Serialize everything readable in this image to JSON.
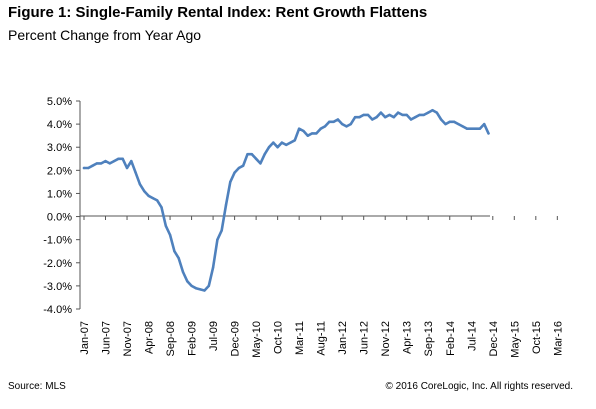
{
  "title": "Figure 1: Single-Family Rental Index: Rent Growth Flattens",
  "subtitle": "Percent Change from Year Ago",
  "source": "Source: MLS",
  "copyright": "© 2016 CoreLogic, Inc. All rights reserved.",
  "colors": {
    "line": "#4F81BD",
    "axis": "#555555"
  },
  "chart_data": {
    "type": "line",
    "title": "Figure 1: Single-Family Rental Index: Rent Growth Flattens",
    "subtitle": "Percent Change from Year Ago",
    "xlabel": "",
    "ylabel": "",
    "ylim": [
      -4.0,
      5.0
    ],
    "ytick_values": [
      5.0,
      4.0,
      3.0,
      2.0,
      1.0,
      0.0,
      -1.0,
      -2.0,
      -3.0,
      -4.0
    ],
    "ytick_labels": [
      "5.0%",
      "4.0%",
      "3.0%",
      "2.0%",
      "1.0%",
      "0.0%",
      "-1.0%",
      "-2.0%",
      "-3.0%",
      "-4.0%"
    ],
    "grid": false,
    "legend": "none",
    "x_start": "Jan-07",
    "xtick_labels": [
      "Jan-07",
      "Jun-07",
      "Nov-07",
      "Apr-08",
      "Sep-08",
      "Feb-09",
      "Jul-09",
      "Dec-09",
      "May-10",
      "Oct-10",
      "Mar-11",
      "Aug-11",
      "Jan-12",
      "Jun-12",
      "Nov-12",
      "Apr-13",
      "Sep-13",
      "Feb-14",
      "Jul-14",
      "Dec-14",
      "May-15",
      "Oct-15",
      "Mar-16"
    ],
    "series": [
      {
        "values": [
          2.1,
          2.1,
          2.2,
          2.3,
          2.3,
          2.4,
          2.3,
          2.4,
          2.5,
          2.5,
          2.1,
          2.4,
          1.9,
          1.4,
          1.1,
          0.9,
          0.8,
          0.7,
          0.4,
          -0.4,
          -0.8,
          -1.5,
          -1.8,
          -2.4,
          -2.8,
          -3.0,
          -3.1,
          -3.15,
          -3.2,
          -3.0,
          -2.2,
          -1.0,
          -0.6,
          0.5,
          1.5,
          1.9,
          2.1,
          2.2,
          2.7,
          2.7,
          2.5,
          2.3,
          2.7,
          3.0,
          3.2,
          3.0,
          3.2,
          3.1,
          3.2,
          3.3,
          3.8,
          3.7,
          3.5,
          3.6,
          3.6,
          3.8,
          3.9,
          4.1,
          4.1,
          4.2,
          4.0,
          3.9,
          4.0,
          4.3,
          4.3,
          4.4,
          4.4,
          4.2,
          4.3,
          4.5,
          4.3,
          4.4,
          4.3,
          4.5,
          4.4,
          4.4,
          4.2,
          4.3,
          4.4,
          4.4,
          4.5,
          4.6,
          4.5,
          4.2,
          4.0,
          4.1,
          4.1,
          4.0,
          3.9,
          3.8,
          3.8,
          3.8,
          3.8,
          4.0,
          3.6
        ]
      }
    ]
  }
}
